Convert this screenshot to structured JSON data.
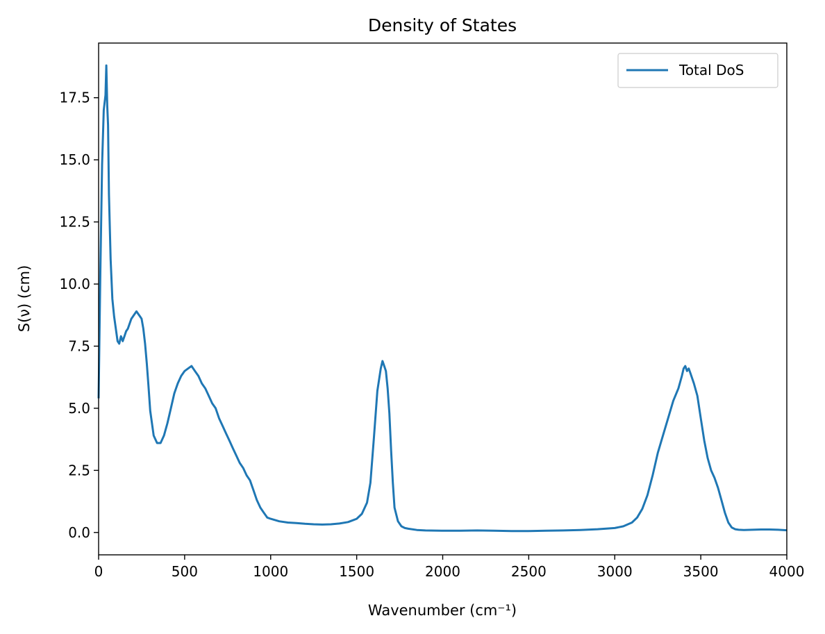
{
  "chart_data": {
    "type": "line",
    "title": "Density of States",
    "xlabel": "Wavenumber (cm⁻¹)",
    "ylabel": "S(ν) (cm)",
    "xlim": [
      0,
      4000
    ],
    "ylim": [
      -0.9,
      19.7
    ],
    "xticks": [
      0,
      500,
      1000,
      1500,
      2000,
      2500,
      3000,
      3500,
      4000
    ],
    "yticks": [
      0.0,
      2.5,
      5.0,
      7.5,
      10.0,
      12.5,
      15.0,
      17.5
    ],
    "xtick_labels": [
      "0",
      "500",
      "1000",
      "1500",
      "2000",
      "2500",
      "3000",
      "3500",
      "4000"
    ],
    "ytick_labels": [
      "0.0",
      "2.5",
      "5.0",
      "7.5",
      "10.0",
      "12.5",
      "15.0",
      "17.5"
    ],
    "grid": false,
    "legend_position": "top-right",
    "series": [
      {
        "name": "Total DoS",
        "color": "#1f77b4",
        "x": [
          0,
          10,
          20,
          30,
          40,
          45,
          50,
          55,
          60,
          70,
          80,
          90,
          100,
          110,
          120,
          130,
          140,
          150,
          160,
          170,
          180,
          190,
          200,
          210,
          220,
          230,
          240,
          250,
          260,
          270,
          280,
          290,
          300,
          320,
          340,
          360,
          380,
          400,
          420,
          440,
          460,
          480,
          500,
          520,
          540,
          560,
          580,
          600,
          620,
          640,
          660,
          680,
          700,
          720,
          740,
          760,
          780,
          800,
          820,
          840,
          860,
          880,
          900,
          920,
          940,
          960,
          980,
          1000,
          1050,
          1100,
          1150,
          1200,
          1250,
          1300,
          1350,
          1400,
          1450,
          1500,
          1530,
          1560,
          1580,
          1600,
          1620,
          1640,
          1650,
          1660,
          1670,
          1680,
          1690,
          1700,
          1710,
          1720,
          1740,
          1760,
          1780,
          1800,
          1850,
          1900,
          2000,
          2100,
          2200,
          2300,
          2400,
          2500,
          2600,
          2700,
          2800,
          2900,
          3000,
          3050,
          3100,
          3130,
          3160,
          3190,
          3220,
          3250,
          3280,
          3310,
          3340,
          3370,
          3390,
          3400,
          3410,
          3420,
          3430,
          3440,
          3460,
          3480,
          3500,
          3520,
          3540,
          3560,
          3580,
          3600,
          3620,
          3640,
          3660,
          3680,
          3700,
          3720,
          3750,
          3800,
          3850,
          3900,
          3950,
          4000
        ],
        "values": [
          5.4,
          10.5,
          14.8,
          17.0,
          17.6,
          18.8,
          17.2,
          16.4,
          13.6,
          11.0,
          9.4,
          8.7,
          8.2,
          7.7,
          7.6,
          7.9,
          7.7,
          7.9,
          8.1,
          8.2,
          8.4,
          8.6,
          8.7,
          8.8,
          8.9,
          8.8,
          8.7,
          8.6,
          8.2,
          7.6,
          6.8,
          5.9,
          4.9,
          3.9,
          3.6,
          3.6,
          3.9,
          4.4,
          5.0,
          5.6,
          6.0,
          6.3,
          6.5,
          6.6,
          6.7,
          6.5,
          6.3,
          6.0,
          5.8,
          5.5,
          5.2,
          5.0,
          4.6,
          4.3,
          4.0,
          3.7,
          3.4,
          3.1,
          2.8,
          2.6,
          2.3,
          2.1,
          1.7,
          1.3,
          1.0,
          0.8,
          0.6,
          0.55,
          0.45,
          0.4,
          0.38,
          0.35,
          0.33,
          0.32,
          0.33,
          0.36,
          0.42,
          0.55,
          0.75,
          1.2,
          2.0,
          3.8,
          5.7,
          6.6,
          6.9,
          6.7,
          6.5,
          5.8,
          4.8,
          3.3,
          2.0,
          1.0,
          0.45,
          0.25,
          0.18,
          0.15,
          0.1,
          0.08,
          0.07,
          0.07,
          0.08,
          0.07,
          0.06,
          0.06,
          0.07,
          0.08,
          0.1,
          0.13,
          0.18,
          0.25,
          0.4,
          0.6,
          0.95,
          1.5,
          2.3,
          3.2,
          3.9,
          4.6,
          5.3,
          5.8,
          6.3,
          6.6,
          6.7,
          6.5,
          6.6,
          6.4,
          6.0,
          5.5,
          4.6,
          3.7,
          3.0,
          2.5,
          2.2,
          1.8,
          1.3,
          0.8,
          0.4,
          0.2,
          0.13,
          0.11,
          0.1,
          0.11,
          0.12,
          0.12,
          0.11,
          0.09
        ]
      }
    ]
  }
}
